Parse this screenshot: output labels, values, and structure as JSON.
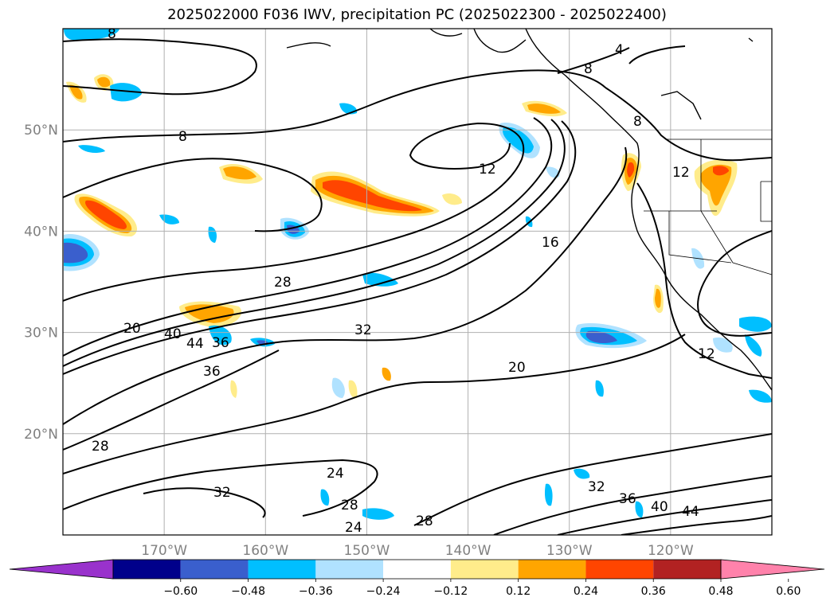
{
  "title": "2025022000 F036 IWV, precipitation PC (2025022300 - 2025022400)",
  "map": {
    "projection": "plate carree",
    "lon_range": [
      -180,
      -110
    ],
    "lat_range": [
      10,
      60
    ],
    "grid": true,
    "lat_ticks": [
      {
        "lat": 50,
        "label": "50°N"
      },
      {
        "lat": 40,
        "label": "40°N"
      },
      {
        "lat": 30,
        "label": "30°N"
      },
      {
        "lat": 20,
        "label": "20°N"
      }
    ],
    "lon_ticks": [
      {
        "lon": -170,
        "label": "170°W"
      },
      {
        "lon": -160,
        "label": "160°W"
      },
      {
        "lon": -150,
        "label": "150°W"
      },
      {
        "lon": -140,
        "label": "140°W"
      },
      {
        "lon": -130,
        "label": "130°W"
      },
      {
        "lon": -120,
        "label": "120°W"
      }
    ]
  },
  "iwv_contours": {
    "color": "#000000",
    "labels": [
      "8",
      "12",
      "16",
      "20",
      "24",
      "28",
      "32",
      "36",
      "40",
      "44",
      "4"
    ]
  },
  "colorbar": {
    "orientation": "horizontal",
    "extend": "both",
    "colors": [
      "#9932cc",
      "#00008b",
      "#3a5fcd",
      "#00bfff",
      "#b0e2ff",
      "#ffffff",
      "#ffec8b",
      "#ffa500",
      "#ff4500",
      "#b22222",
      "#ff82ab"
    ],
    "boundaries": [
      -0.6,
      -0.48,
      -0.36,
      -0.24,
      -0.12,
      0.12,
      0.24,
      0.36,
      0.48,
      0.6
    ],
    "tick_labels": [
      "−0.60",
      "−0.48",
      "−0.36",
      "−0.24",
      "−0.12",
      "0.12",
      "0.24",
      "0.36",
      "0.48",
      "0.60"
    ]
  }
}
